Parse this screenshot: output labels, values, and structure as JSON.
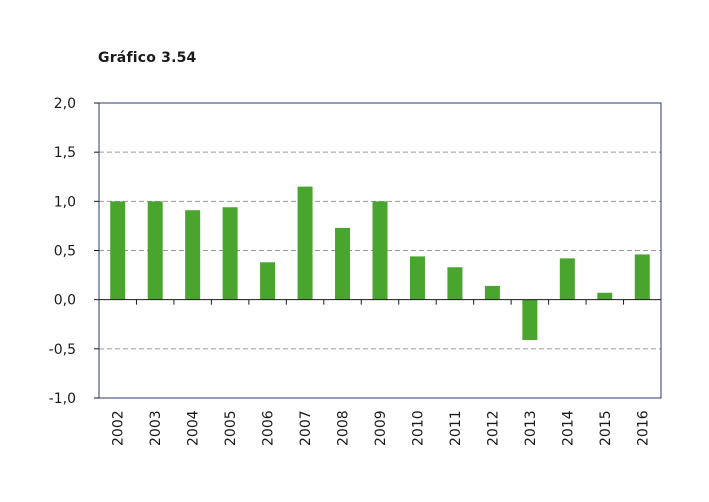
{
  "title": "Gráfico 3.54",
  "chart_data": {
    "type": "bar",
    "categories": [
      "2002",
      "2003",
      "2004",
      "2005",
      "2006",
      "2007",
      "2008",
      "2009",
      "2010",
      "2011",
      "2012",
      "2013",
      "2014",
      "2015",
      "2016"
    ],
    "values": [
      1.0,
      1.0,
      0.91,
      0.94,
      0.38,
      1.15,
      0.73,
      1.0,
      0.44,
      0.33,
      0.14,
      -0.41,
      0.42,
      0.07,
      0.46
    ],
    "ylim": [
      -1.0,
      2.0
    ],
    "yticks": [
      2.0,
      1.5,
      1.0,
      0.5,
      0.0,
      -0.5,
      -1.0
    ],
    "ytick_labels": [
      "2,0",
      "1,5",
      "1,0",
      "0,5",
      "0,0",
      "-0,5",
      "-1,0"
    ],
    "grid": true,
    "bar_color": "#4aa52e",
    "frame_color": "#2b3a6b"
  }
}
